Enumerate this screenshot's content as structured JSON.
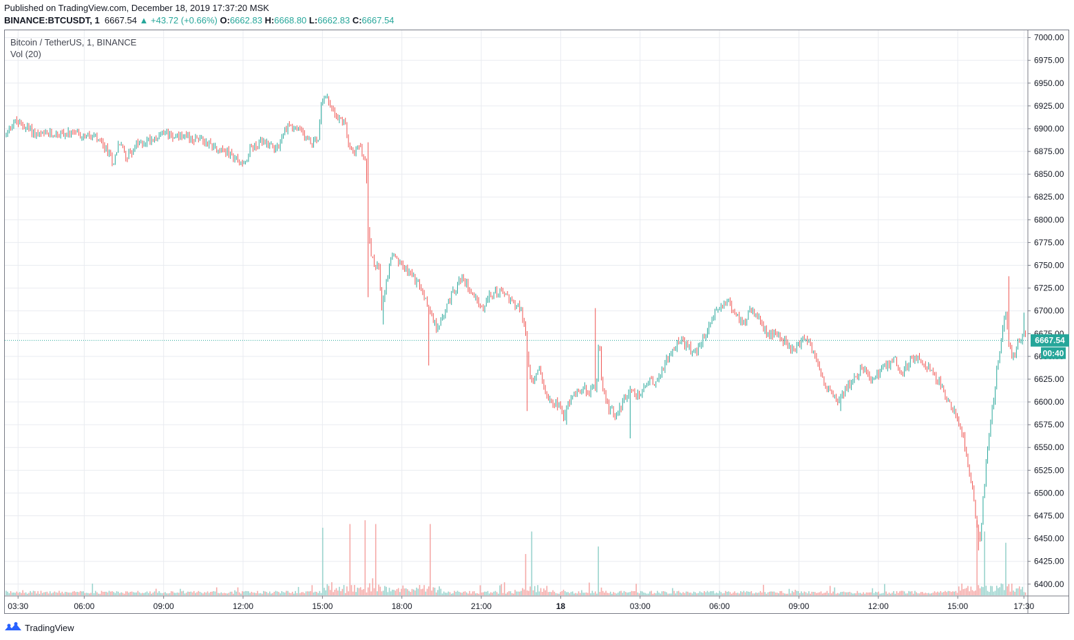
{
  "header": {
    "published": "Published on TradingView.com, December 18, 2019 17:37:20 MSK",
    "symbol": "BINANCE:BTCUSDT, 1",
    "last": "6667.54",
    "change": "▲ +43.72 (+0.66%)",
    "o_label": "O:",
    "o": "6662.83",
    "h_label": "H:",
    "h": "6668.80",
    "l_label": "L:",
    "l": "6662.83",
    "c_label": "C:",
    "c": "6667.54"
  },
  "legend": {
    "title": "Bitcoin / TetherUS, 1, BINANCE",
    "volume": "Vol (20)"
  },
  "footer": {
    "brand": "TradingView",
    "logo_icon": "tradingview-logo-icon"
  },
  "colors": {
    "up": "#26a69a",
    "down": "#ef5350",
    "grid": "#e9ebf0",
    "price_line": "#26a69a"
  },
  "chart_data": {
    "type": "candlestick",
    "symbol": "BINANCE:BTCUSDT",
    "interval": "1",
    "ylim": [
      6387,
      7008
    ],
    "y_ticks": [
      7000,
      6975,
      6950,
      6925,
      6900,
      6875,
      6850,
      6825,
      6800,
      6775,
      6750,
      6725,
      6700,
      6675,
      6650,
      6625,
      6600,
      6575,
      6550,
      6525,
      6500,
      6475,
      6450,
      6425,
      6400
    ],
    "y_tick_labels": [
      "7000.00",
      "6975.00",
      "6950.00",
      "6925.00",
      "6900.00",
      "6875.00",
      "6850.00",
      "6825.00",
      "6800.00",
      "6775.00",
      "6750.00",
      "6725.00",
      "6700.00",
      "6675.00",
      "6650.00",
      "6625.00",
      "6600.00",
      "6575.00",
      "6550.00",
      "6525.00",
      "6500.00",
      "6475.00",
      "6450.00",
      "6425.00",
      "6400.00"
    ],
    "x_ticks": [
      {
        "label": "03:30",
        "hour": 3.5,
        "bold": false
      },
      {
        "label": "06:00",
        "hour": 6,
        "bold": false
      },
      {
        "label": "09:00",
        "hour": 9,
        "bold": false
      },
      {
        "label": "12:00",
        "hour": 12,
        "bold": false
      },
      {
        "label": "15:00",
        "hour": 15,
        "bold": false
      },
      {
        "label": "18:00",
        "hour": 18,
        "bold": false
      },
      {
        "label": "21:00",
        "hour": 21,
        "bold": false
      },
      {
        "label": "18",
        "hour": 24,
        "bold": true
      },
      {
        "label": "03:00",
        "hour": 27,
        "bold": false
      },
      {
        "label": "06:00",
        "hour": 30,
        "bold": false
      },
      {
        "label": "09:00",
        "hour": 33,
        "bold": false
      },
      {
        "label": "12:00",
        "hour": 36,
        "bold": false
      },
      {
        "label": "15:00",
        "hour": 39,
        "bold": false
      },
      {
        "label": "17:30",
        "hour": 41.5,
        "bold": false
      }
    ],
    "x_range_hours": [
      3.0,
      41.65
    ],
    "price_path": [
      [
        3.05,
        6893
      ],
      [
        3.3,
        6908
      ],
      [
        3.8,
        6902
      ],
      [
        4.3,
        6892
      ],
      [
        5.0,
        6895
      ],
      [
        5.8,
        6893
      ],
      [
        6.4,
        6890
      ],
      [
        6.9,
        6874
      ],
      [
        7.1,
        6862
      ],
      [
        7.3,
        6885
      ],
      [
        7.6,
        6870
      ],
      [
        8.0,
        6882
      ],
      [
        8.6,
        6890
      ],
      [
        9.2,
        6895
      ],
      [
        9.8,
        6890
      ],
      [
        10.4,
        6888
      ],
      [
        11.0,
        6880
      ],
      [
        11.6,
        6870
      ],
      [
        12.0,
        6860
      ],
      [
        12.3,
        6880
      ],
      [
        12.8,
        6885
      ],
      [
        13.3,
        6880
      ],
      [
        13.7,
        6905
      ],
      [
        14.2,
        6895
      ],
      [
        14.6,
        6885
      ],
      [
        14.85,
        6890
      ],
      [
        14.95,
        6930
      ],
      [
        15.1,
        6940
      ],
      [
        15.35,
        6920
      ],
      [
        15.6,
        6912
      ],
      [
        15.85,
        6905
      ],
      [
        16.0,
        6885
      ],
      [
        16.2,
        6875
      ],
      [
        16.4,
        6880
      ],
      [
        16.55,
        6870
      ],
      [
        16.65,
        6858
      ],
      [
        16.72,
        6790
      ],
      [
        16.8,
        6770
      ],
      [
        16.95,
        6748
      ],
      [
        17.1,
        6755
      ],
      [
        17.25,
        6700
      ],
      [
        17.4,
        6730
      ],
      [
        17.6,
        6760
      ],
      [
        18.0,
        6750
      ],
      [
        18.3,
        6740
      ],
      [
        18.6,
        6730
      ],
      [
        19.0,
        6705
      ],
      [
        19.3,
        6680
      ],
      [
        19.6,
        6700
      ],
      [
        19.9,
        6718
      ],
      [
        20.2,
        6735
      ],
      [
        20.5,
        6728
      ],
      [
        20.8,
        6715
      ],
      [
        21.0,
        6700
      ],
      [
        21.3,
        6715
      ],
      [
        21.6,
        6722
      ],
      [
        21.9,
        6718
      ],
      [
        22.2,
        6710
      ],
      [
        22.5,
        6700
      ],
      [
        22.65,
        6685
      ],
      [
        22.75,
        6645
      ],
      [
        22.9,
        6620
      ],
      [
        23.2,
        6635
      ],
      [
        23.5,
        6605
      ],
      [
        23.9,
        6598
      ],
      [
        24.1,
        6585
      ],
      [
        24.4,
        6605
      ],
      [
        24.8,
        6615
      ],
      [
        25.1,
        6612
      ],
      [
        25.35,
        6618
      ],
      [
        25.45,
        6680
      ],
      [
        25.55,
        6620
      ],
      [
        25.8,
        6595
      ],
      [
        26.1,
        6582
      ],
      [
        26.4,
        6605
      ],
      [
        26.7,
        6612
      ],
      [
        27.0,
        6608
      ],
      [
        27.3,
        6625
      ],
      [
        27.6,
        6620
      ],
      [
        27.9,
        6640
      ],
      [
        28.2,
        6655
      ],
      [
        28.5,
        6668
      ],
      [
        28.8,
        6660
      ],
      [
        29.1,
        6652
      ],
      [
        29.4,
        6670
      ],
      [
        29.7,
        6690
      ],
      [
        30.0,
        6705
      ],
      [
        30.3,
        6712
      ],
      [
        30.6,
        6695
      ],
      [
        30.9,
        6688
      ],
      [
        31.2,
        6700
      ],
      [
        31.5,
        6690
      ],
      [
        31.8,
        6672
      ],
      [
        32.1,
        6678
      ],
      [
        32.4,
        6668
      ],
      [
        32.7,
        6655
      ],
      [
        33.0,
        6662
      ],
      [
        33.3,
        6670
      ],
      [
        33.6,
        6650
      ],
      [
        33.9,
        6625
      ],
      [
        34.2,
        6610
      ],
      [
        34.5,
        6600
      ],
      [
        34.8,
        6615
      ],
      [
        35.1,
        6625
      ],
      [
        35.4,
        6640
      ],
      [
        35.7,
        6625
      ],
      [
        36.0,
        6630
      ],
      [
        36.3,
        6640
      ],
      [
        36.6,
        6648
      ],
      [
        36.9,
        6632
      ],
      [
        37.2,
        6645
      ],
      [
        37.5,
        6650
      ],
      [
        37.8,
        6640
      ],
      [
        38.1,
        6632
      ],
      [
        38.4,
        6615
      ],
      [
        38.7,
        6598
      ],
      [
        39.0,
        6582
      ],
      [
        39.2,
        6565
      ],
      [
        39.4,
        6530
      ],
      [
        39.55,
        6505
      ],
      [
        39.7,
        6468
      ],
      [
        39.85,
        6450
      ],
      [
        39.95,
        6490
      ],
      [
        40.1,
        6540
      ],
      [
        40.3,
        6590
      ],
      [
        40.5,
        6640
      ],
      [
        40.65,
        6670
      ],
      [
        40.8,
        6700
      ],
      [
        40.95,
        6660
      ],
      [
        41.1,
        6648
      ],
      [
        41.3,
        6665
      ],
      [
        41.5,
        6672
      ],
      [
        41.6,
        6667.54
      ]
    ],
    "spikes": [
      {
        "hour": 16.7,
        "high": 6885,
        "low": 6715
      },
      {
        "hour": 17.3,
        "low": 6685
      },
      {
        "hour": 19.0,
        "low": 6640
      },
      {
        "hour": 22.75,
        "low": 6590
      },
      {
        "hour": 24.2,
        "low": 6575
      },
      {
        "hour": 25.3,
        "high": 6703
      },
      {
        "hour": 26.6,
        "low": 6560
      },
      {
        "hour": 34.6,
        "low": 6590
      },
      {
        "hour": 39.8,
        "low": 6437
      },
      {
        "hour": 40.95,
        "high": 6738
      },
      {
        "hour": 41.5,
        "high": 6698
      }
    ],
    "volume_spikes": [
      {
        "hour": 15.0,
        "value": 0.9,
        "up": true
      },
      {
        "hour": 16.05,
        "value": 0.95,
        "down": true
      },
      {
        "hour": 16.6,
        "value": 1.0,
        "down": true
      },
      {
        "hour": 17.0,
        "value": 0.95,
        "down": true
      },
      {
        "hour": 19.1,
        "value": 0.95,
        "down": true
      },
      {
        "hour": 22.7,
        "value": 0.55,
        "down": true
      },
      {
        "hour": 22.9,
        "value": 0.85,
        "up": true
      },
      {
        "hour": 25.4,
        "value": 0.65,
        "up": true
      },
      {
        "hour": 39.75,
        "value": 1.0,
        "down": true
      },
      {
        "hour": 40.0,
        "value": 0.85,
        "up": true
      },
      {
        "hour": 40.8,
        "value": 0.7,
        "up": true
      }
    ],
    "last_price": 6667.54,
    "last_price_label": "6667.54",
    "countdown": "00:40"
  }
}
